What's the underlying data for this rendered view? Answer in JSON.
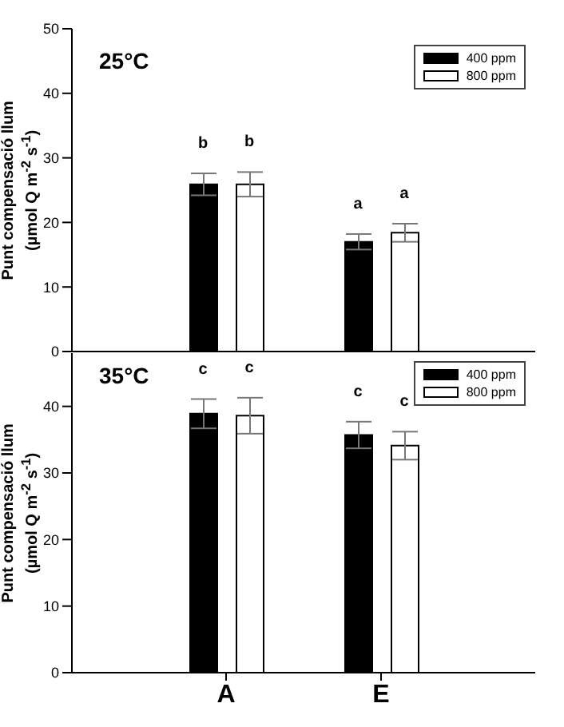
{
  "chart_data": [
    {
      "type": "bar",
      "title": "25°C",
      "ylabel": "Punt compensació llum (µmol Q m$^{-2}$ s$^{-1}$)",
      "categories": [
        null,
        null
      ],
      "series": [
        {
          "name": "400 ppm",
          "color": "#000000",
          "values": [
            25.9,
            17.0
          ],
          "errors": [
            1.7,
            1.2
          ]
        },
        {
          "name": "800 ppm",
          "color": "#ffffff",
          "values": [
            25.9,
            18.4
          ],
          "errors": [
            1.9,
            1.4
          ]
        }
      ],
      "ylim": [
        0,
        50
      ],
      "yticks": [
        0,
        10,
        20,
        30,
        40,
        50
      ],
      "legend": "top right",
      "tick_labels": "y",
      "annotations": [
        "b",
        "b",
        "a",
        "a"
      ]
    },
    {
      "type": "bar",
      "title": "35°C",
      "ylabel": "Punt compensació llum (µmol Q m$^{-2}$ s$^{-1}$)",
      "categories": [
        "A",
        "E"
      ],
      "series": [
        {
          "name": "400 ppm",
          "color": "#000000",
          "values": [
            38.9,
            35.7
          ],
          "errors": [
            2.2,
            2.0
          ]
        },
        {
          "name": "800 ppm",
          "color": "#ffffff",
          "values": [
            38.6,
            34.1
          ],
          "errors": [
            2.7,
            2.1
          ]
        }
      ],
      "ylim": [
        0,
        48
      ],
      "yticks": [
        0,
        10,
        20,
        30,
        40
      ],
      "legend": "top right",
      "annotations": [
        "c",
        "c",
        "c",
        "c"
      ]
    }
  ]
}
